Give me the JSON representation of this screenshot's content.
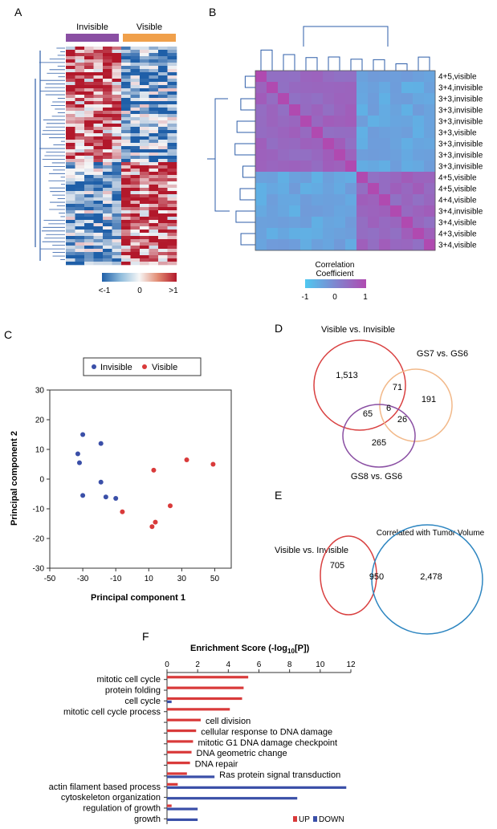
{
  "panels": {
    "a": {
      "letter": "A",
      "groups": [
        "Invisible",
        "Visible"
      ],
      "group_colors": [
        "#8a4fa3",
        "#f0a04b"
      ],
      "scale": {
        "low": "<-1",
        "mid": "0",
        "high": ">1"
      }
    },
    "b": {
      "letter": "B",
      "labels": [
        "4+5,visible",
        "3+4,invisible",
        "3+3,invisible",
        "3+3,invisible",
        "3+3,invisible",
        "3+3,visible",
        "3+3,invisible",
        "3+3,invisible",
        "3+3,invisible",
        "4+5,visible",
        "4+5,visible",
        "4+4,visible",
        "3+4,invisible",
        "3+4,visible",
        "4+3,visible",
        "3+4,visible"
      ],
      "colorbar_title1": "Correlation",
      "colorbar_title2": "Coefficient",
      "colorbar_ticks": [
        "-1",
        "0",
        "1"
      ]
    },
    "c": {
      "letter": "C"
    },
    "d": {
      "letter": "D",
      "set_labels": [
        "Visible vs. Invisible",
        "GS7 vs. GS6",
        "GS8 vs. GS6"
      ],
      "counts": [
        "1,513",
        "71",
        "191",
        "65",
        "6",
        "26",
        "265"
      ],
      "colors": [
        "#d94040",
        "#f2b98a",
        "#8a4fa3"
      ]
    },
    "e": {
      "letter": "E",
      "set_labels": [
        "Visible vs. Invisible",
        "Correlated with Tumor Volume"
      ],
      "counts": [
        "705",
        "950",
        "2,478"
      ],
      "colors": [
        "#d94040",
        "#2e86c1"
      ]
    },
    "f": {
      "letter": "F"
    }
  },
  "chart_data": [
    {
      "type": "heatmap",
      "panel": "A",
      "description_columns": [
        "Invisible",
        "Visible"
      ],
      "color_scale": {
        "min_label": "<-1",
        "mid_label": "0",
        "max_label": ">1",
        "low_color": "#1f5fa8",
        "high_color": "#b2182b"
      }
    },
    {
      "type": "heatmap",
      "panel": "B",
      "row_labels": [
        "4+5,visible",
        "3+4,invisible",
        "3+3,invisible",
        "3+3,invisible",
        "3+3,invisible",
        "3+3,visible",
        "3+3,invisible",
        "3+3,invisible",
        "3+3,invisible",
        "4+5,visible",
        "4+5,visible",
        "4+4,visible",
        "3+4,invisible",
        "3+4,visible",
        "4+3,visible",
        "3+4,visible"
      ],
      "clusters": [
        9,
        7
      ],
      "color_scale": {
        "min": -1,
        "max": 1,
        "min_color": "#4fc8f0",
        "max_color": "#b04ab0"
      }
    },
    {
      "type": "scatter",
      "panel": "C",
      "xlabel": "Principal component 1",
      "ylabel": "Principal component 2",
      "xlim": [
        -50,
        60
      ],
      "ylim": [
        -30,
        30
      ],
      "xticks": [
        -50,
        -30,
        -10,
        10,
        30,
        50
      ],
      "yticks": [
        -30,
        -20,
        -10,
        0,
        10,
        20,
        30
      ],
      "legend": [
        "Invisible",
        "Visible"
      ],
      "series": [
        {
          "name": "Invisible",
          "color": "#3a4fa8",
          "points": [
            [
              -30,
              15
            ],
            [
              -19,
              12
            ],
            [
              -33,
              8.5
            ],
            [
              -32,
              5.5
            ],
            [
              -19,
              -1
            ],
            [
              -30,
              -5.5
            ],
            [
              -16,
              -6
            ],
            [
              -10,
              -6.5
            ]
          ]
        },
        {
          "name": "Visible",
          "color": "#d93a3a",
          "points": [
            [
              13,
              3
            ],
            [
              33,
              6.5
            ],
            [
              49,
              5
            ],
            [
              -6,
              -11
            ],
            [
              23,
              -9
            ],
            [
              14,
              -14.5
            ],
            [
              12,
              -16
            ]
          ]
        }
      ]
    },
    {
      "type": "bar",
      "panel": "F",
      "orientation": "horizontal",
      "title": "Enrichment Score (-log",
      "title_sub": "10",
      "title_end": "[P])",
      "xlim": [
        0,
        12
      ],
      "xticks": [
        0,
        2,
        4,
        6,
        8,
        10,
        12
      ],
      "legend": [
        "UP",
        "DOWN"
      ],
      "series_colors": {
        "UP": "#d93a3a",
        "DOWN": "#3a4fa8"
      },
      "categories": [
        {
          "label": "mitotic cell cycle",
          "side": "left",
          "up": 5.3,
          "down": 0
        },
        {
          "label": "protein folding",
          "side": "left",
          "up": 5.0,
          "down": 0
        },
        {
          "label": "cell cycle",
          "side": "left",
          "up": 4.9,
          "down": 0.3
        },
        {
          "label": "mitotic cell cycle process",
          "side": "left",
          "up": 4.1,
          "down": 0
        },
        {
          "label": "cell division",
          "side": "right",
          "up": 2.2,
          "down": 0
        },
        {
          "label": "cellular response to DNA damage",
          "side": "right",
          "up": 1.9,
          "down": 0
        },
        {
          "label": "mitotic G1 DNA damage checkpoint",
          "side": "right",
          "up": 1.7,
          "down": 0
        },
        {
          "label": "DNA geometric change",
          "side": "right",
          "up": 1.6,
          "down": 0
        },
        {
          "label": "DNA repair",
          "side": "right",
          "up": 1.5,
          "down": 0
        },
        {
          "label": "Ras protein signal transduction",
          "side": "right",
          "up": 1.3,
          "down": 3.1
        },
        {
          "label": "actin filament based process",
          "side": "left",
          "up": 0.7,
          "down": 11.7
        },
        {
          "label": "cytoskeleton organization",
          "side": "left",
          "up": 0,
          "down": 8.5
        },
        {
          "label": "regulation of growth",
          "side": "left",
          "up": 0.3,
          "down": 2.0
        },
        {
          "label": "growth",
          "side": "left",
          "up": 0,
          "down": 2.0
        }
      ]
    }
  ]
}
